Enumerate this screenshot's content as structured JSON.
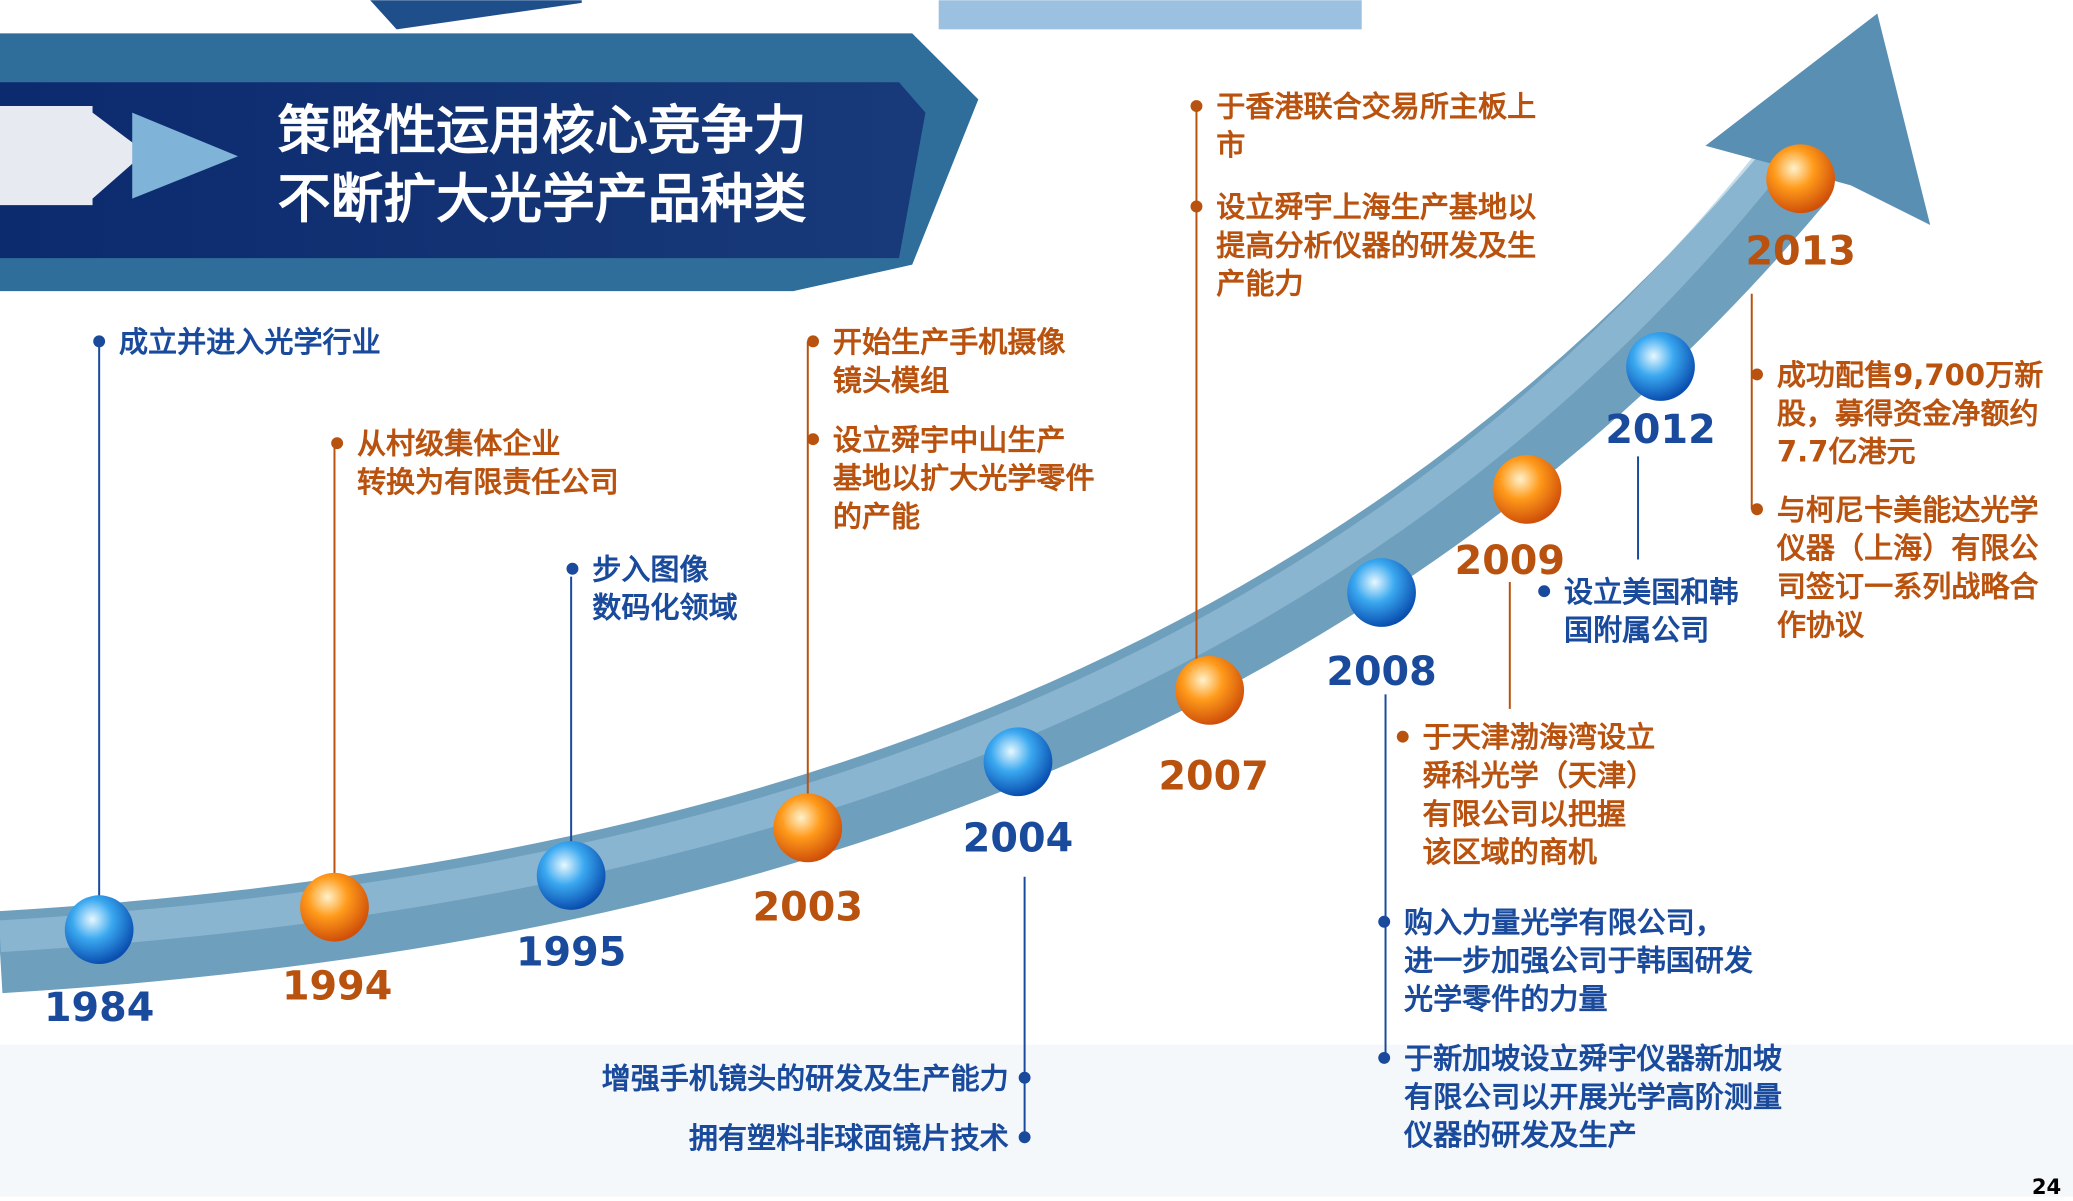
{
  "title_lines": [
    "策略性运用核心竞争力",
    "不断扩大光学产品种类"
  ],
  "page_number": "24",
  "milestones": [
    {
      "year": "1984",
      "color": "#1a4a9c",
      "items": [
        [
          "成立并进入光学行业"
        ]
      ]
    },
    {
      "year": "1994",
      "color": "#b8520e",
      "items": [
        [
          "从村级集体企业",
          "转换为有限责任公司"
        ]
      ]
    },
    {
      "year": "1995",
      "color": "#1a4a9c",
      "items": [
        [
          "步入图像",
          "数码化领域"
        ]
      ]
    },
    {
      "year": "2003",
      "color": "#b8520e",
      "items": [
        [
          "开始生产手机摄像",
          "镜头模组"
        ],
        [
          "设立舜宇中山生产",
          "基地以扩大光学零件",
          "的产能"
        ]
      ]
    },
    {
      "year": "2004",
      "color": "#1a4a9c",
      "items": [
        [
          "增强手机镜头的研发及生产能力"
        ],
        [
          "拥有塑料非球面镜片技术"
        ]
      ]
    },
    {
      "year": "2007",
      "color": "#b8520e",
      "items": [
        [
          "于香港联合交易所主板上",
          "市"
        ],
        [
          "设立舜宇上海生产基地以",
          "提高分析仪器的研发及生",
          "产能力"
        ]
      ]
    },
    {
      "year": "2008",
      "color": "#1a4a9c",
      "items": [
        [
          "购入力量光学有限公司，",
          "进一步加强公司于韩国研发",
          "光学零件的力量"
        ],
        [
          "于新加坡设立舜宇仪器新加坡",
          "有限公司以开展光学高阶测量",
          "仪器的研发及生产"
        ]
      ]
    },
    {
      "year": "2009",
      "color": "#b8520e",
      "items": [
        [
          "于天津渤海湾设立",
          "舜科光学（天津）",
          "有限公司以把握",
          "该区域的商机"
        ]
      ]
    },
    {
      "year": "2012",
      "color": "#1a4a9c",
      "items": [
        [
          "设立美国和韩",
          "国附属公司"
        ]
      ]
    },
    {
      "year": "2013",
      "color": "#b8520e",
      "items": [
        [
          "成功配售9,700万新",
          "股，募得资金净额约",
          "7.7亿港元"
        ],
        [
          "与柯尼卡美能达光学",
          "仪器（上海）有限公",
          "司签订一系列战略合",
          "作协议"
        ]
      ]
    }
  ]
}
